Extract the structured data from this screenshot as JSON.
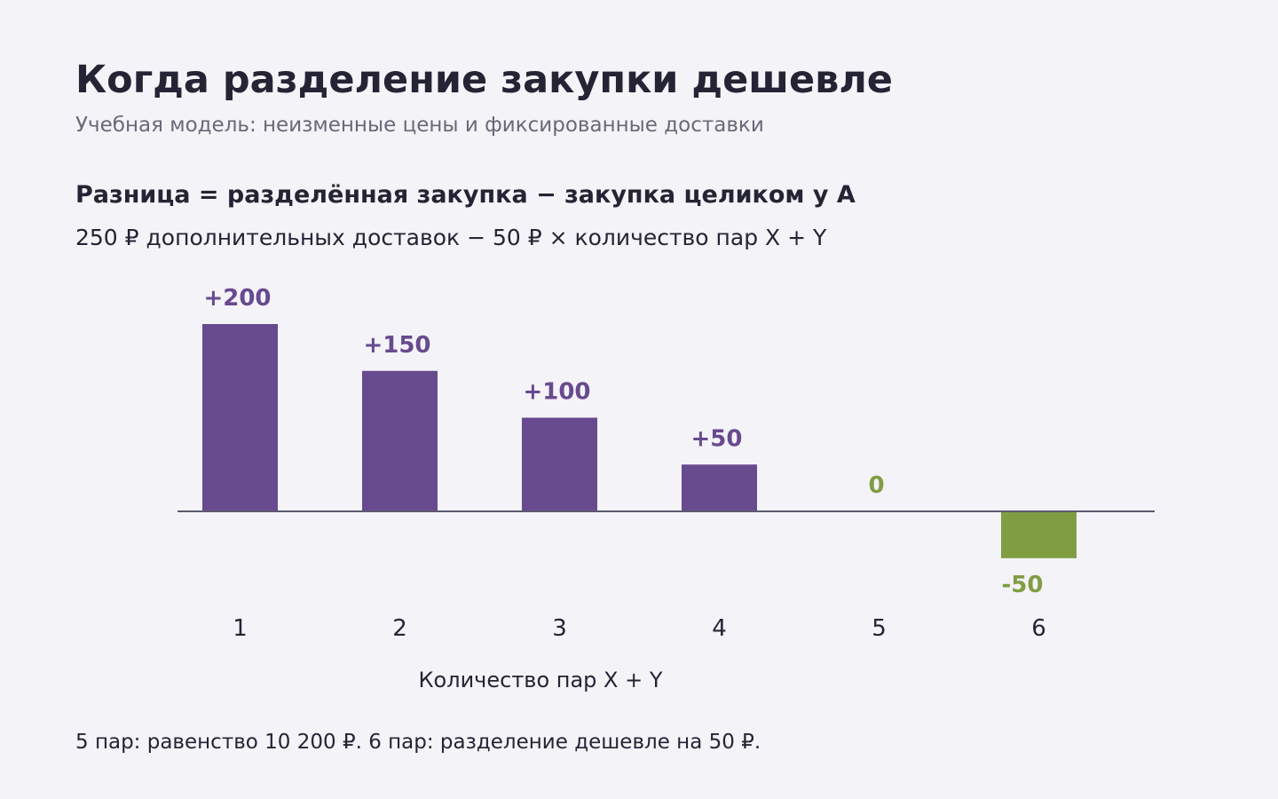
{
  "header": {
    "title": "Когда разделение закупки дешевле",
    "subtitle": "Учебная модель: неизменные цены и фиксированные доставки"
  },
  "formula": {
    "title": "Разница = разделённая закупка − закупка целиком у A",
    "text": "250 ₽ дополнительных доставок − 50 ₽ × количество пар X + Y"
  },
  "chart_data": {
    "type": "bar",
    "categories": [
      "1",
      "2",
      "3",
      "4",
      "5",
      "6"
    ],
    "values": [
      200,
      150,
      100,
      50,
      0,
      -50
    ],
    "data_labels": [
      "+200",
      "+150",
      "+100",
      "+50",
      "0",
      "-50"
    ],
    "xlabel": "Количество пар X + Y",
    "ylabel": "",
    "ylim": [
      -50,
      200
    ],
    "grid": false,
    "colors": {
      "positive": "#684a8f",
      "non_positive": "#809d42",
      "axis": "#5c5a70"
    }
  },
  "footnote": "5 пар: равенство 10 200 ₽. 6 пар: разделение дешевле на 50 ₽."
}
